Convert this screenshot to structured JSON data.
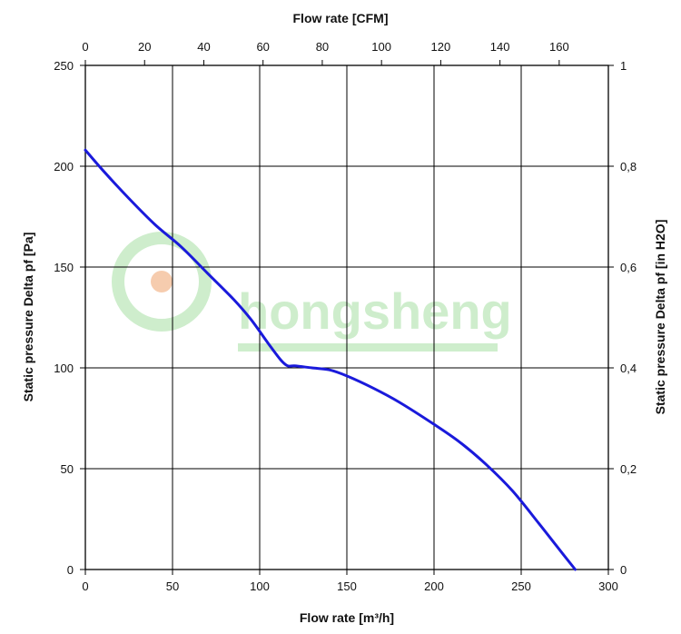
{
  "chart_data": {
    "type": "line",
    "title": "",
    "xlabel": "Flow rate [m³/h]",
    "ylabel": "Static pressure Delta pf [Pa]",
    "x2label": "Flow rate [CFM]",
    "y2label": "Static pressure Delta pf [in H2O]",
    "xlim": [
      0,
      300
    ],
    "ylim": [
      0,
      250
    ],
    "x2lim": [
      0,
      176.6
    ],
    "y2lim": [
      0,
      1.0
    ],
    "xticks": [
      0,
      50,
      100,
      150,
      200,
      250,
      300
    ],
    "yticks": [
      0,
      50,
      100,
      150,
      200,
      250
    ],
    "x2ticks": [
      0,
      20,
      40,
      60,
      80,
      100,
      120,
      140,
      160
    ],
    "x2ticklabels": [
      "0",
      "20",
      "40",
      "60",
      "80",
      "100",
      "120",
      "140",
      "160"
    ],
    "y2ticks": [
      0,
      0.2,
      0.4,
      0.6,
      0.8,
      1
    ],
    "y2ticklabels": [
      "0",
      "0,2",
      "0,4",
      "0,6",
      "0,8",
      "1"
    ],
    "grid": true,
    "series": [
      {
        "color": "#1a1adb",
        "x": [
          0,
          10,
          25,
          40,
          55,
          70,
          85,
          95,
          105,
          112,
          116,
          120,
          130,
          140,
          150,
          165,
          180,
          200,
          215,
          230,
          245,
          260,
          270,
          281
        ],
        "y": [
          208,
          198,
          184,
          171,
          160,
          147,
          134,
          124,
          112,
          104,
          101,
          101,
          100,
          99,
          96,
          90,
          83,
          72,
          63,
          52,
          39,
          23,
          12,
          0
        ]
      }
    ]
  },
  "watermark": {
    "text": "hongsheng",
    "color": "#c9ecc7",
    "accent": "#f6c7a6"
  }
}
